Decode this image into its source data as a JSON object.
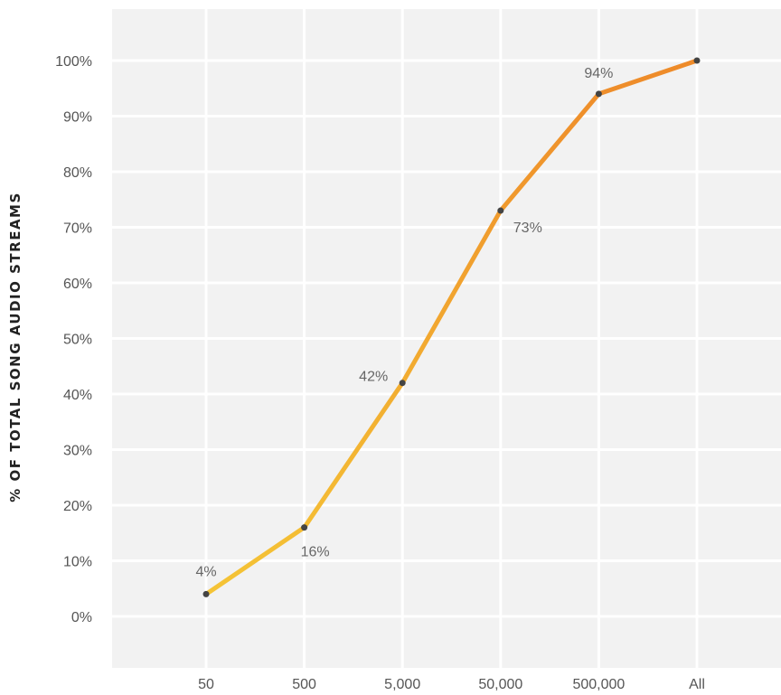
{
  "chart_data": {
    "type": "line",
    "title": "",
    "xlabel": "",
    "ylabel": "% OF TOTAL SONG AUDIO STREAMS",
    "categories": [
      "50",
      "500",
      "5,000",
      "50,000",
      "500,000",
      "All"
    ],
    "series": [
      {
        "values": [
          4,
          16,
          42,
          73,
          94,
          100
        ]
      }
    ],
    "data_labels": [
      "4%",
      "16%",
      "42%",
      "73%",
      "94%",
      ""
    ],
    "y_ticks": [
      0,
      10,
      20,
      30,
      40,
      50,
      60,
      70,
      80,
      90,
      100
    ],
    "y_tick_labels": [
      "0%",
      "10%",
      "20%",
      "30%",
      "40%",
      "50%",
      "60%",
      "70%",
      "80%",
      "90%",
      "100%"
    ],
    "ylim": [
      -10,
      109.5
    ],
    "grid": true,
    "legend": "none",
    "colors": {
      "plot_background": "#f2f2f2",
      "gridline": "#ffffff",
      "line_start": "#f5c636",
      "line_end": "#ee8a2a",
      "marker": "#444444"
    }
  }
}
